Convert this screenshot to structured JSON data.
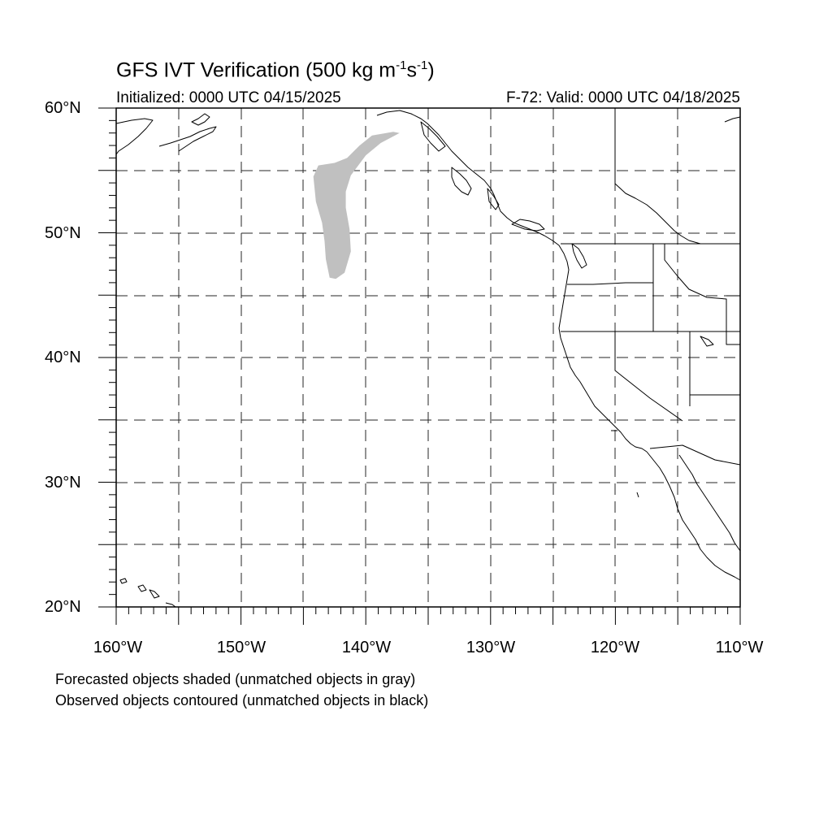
{
  "title": {
    "main": "GFS IVT Verification (500 kg m",
    "exp1": "-1",
    "mid": "s",
    "exp2": "-1",
    "end": ")"
  },
  "initialized": "Initialized: 0000 UTC 04/15/2025",
  "valid": "F-72: Valid: 0000 UTC 04/18/2025",
  "lat_labels": [
    "60°N",
    "50°N",
    "40°N",
    "30°N",
    "20°N"
  ],
  "lon_labels": [
    "160°W",
    "150°W",
    "140°W",
    "130°W",
    "120°W",
    "110°W"
  ],
  "legend": {
    "line1": "Forecasted objects shaded (unmatched objects in gray)",
    "line2": "Observed objects contoured (unmatched objects in black)"
  },
  "colors": {
    "forecast_unmatched": "#c0c0c0",
    "coastline": "#000000",
    "grid": "#000000"
  },
  "map_extent": {
    "lon_min": -160,
    "lon_max": -110,
    "lat_min": 20,
    "lat_max": 60
  },
  "forecast_object": {
    "status": "unmatched",
    "outline_lonlat": [
      [
        -137.3,
        58.0
      ],
      [
        -137.8,
        58.1
      ],
      [
        -139.5,
        57.8
      ],
      [
        -140.5,
        57.0
      ],
      [
        -141.5,
        56.0
      ],
      [
        -142.5,
        55.6
      ],
      [
        -143.8,
        55.4
      ],
      [
        -144.2,
        54.5
      ],
      [
        -144.0,
        52.5
      ],
      [
        -143.5,
        50.8
      ],
      [
        -143.3,
        49.3
      ],
      [
        -143.2,
        47.9
      ],
      [
        -142.9,
        46.4
      ],
      [
        -142.4,
        46.3
      ],
      [
        -141.7,
        46.8
      ],
      [
        -141.2,
        48.5
      ],
      [
        -141.3,
        50.3
      ],
      [
        -141.6,
        52.0
      ],
      [
        -141.6,
        53.3
      ],
      [
        -141.2,
        54.6
      ],
      [
        -140.0,
        56.2
      ],
      [
        -138.8,
        57.2
      ]
    ]
  }
}
